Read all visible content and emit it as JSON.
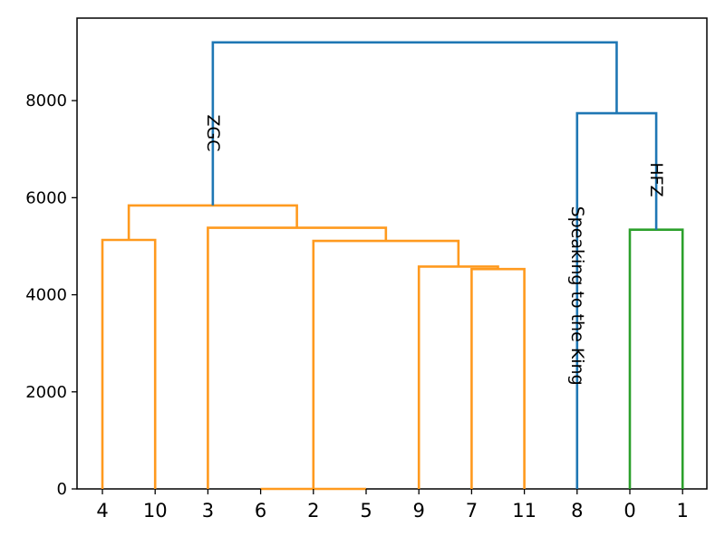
{
  "chart_data": {
    "type": "dendrogram",
    "title": "",
    "xlabel": "",
    "ylabel": "",
    "ylim": [
      0,
      9700
    ],
    "yticks": [
      0,
      2000,
      4000,
      6000,
      8000
    ],
    "ytick_labels": [
      "0",
      "2000",
      "4000",
      "6000",
      "8000"
    ],
    "leaves": [
      "4",
      "10",
      "3",
      "6",
      "2",
      "5",
      "9",
      "7",
      "11",
      "8",
      "0",
      "1"
    ],
    "colors": {
      "orange": "#ff9a1e",
      "green": "#2ca02c",
      "blue": "#1f77b4"
    },
    "links": [
      {
        "name": "link-4-10",
        "color": "orange",
        "height": 5130,
        "left_pos": 0,
        "left_h": 0,
        "right_pos": 1,
        "right_h": 0
      },
      {
        "name": "link-6-5",
        "color": "orange",
        "height": 0,
        "left_pos": 3,
        "left_h": 0,
        "right_pos": 5,
        "right_h": 0
      },
      {
        "name": "link-7-11",
        "color": "orange",
        "height": 4530,
        "left_pos": 7,
        "left_h": 0,
        "right_pos": 8,
        "right_h": 0
      },
      {
        "name": "link-9-7-11",
        "color": "orange",
        "height": 4580,
        "left_pos": 6,
        "left_h": 0,
        "right_pos": 7.5,
        "right_h": 4530
      },
      {
        "name": "link-2-cluster",
        "color": "orange",
        "height": 5110,
        "left_pos": 4,
        "left_h": 0,
        "right_pos": 6.75,
        "right_h": 4580
      },
      {
        "name": "link-3-cluster",
        "color": "orange",
        "height": 5380,
        "left_pos": 2,
        "left_h": 0,
        "right_pos": 5.375,
        "right_h": 5110
      },
      {
        "name": "link-orange-top",
        "color": "orange",
        "height": 5840,
        "left_pos": 0.5,
        "left_h": 5130,
        "right_pos": 3.6875,
        "right_h": 5380
      },
      {
        "name": "link-0-1",
        "color": "green",
        "height": 5340,
        "left_pos": 10,
        "left_h": 0,
        "right_pos": 11,
        "right_h": 0
      },
      {
        "name": "link-8-01",
        "color": "blue",
        "height": 7740,
        "left_pos": 9,
        "left_h": 0,
        "right_pos": 10.5,
        "right_h": 5340
      },
      {
        "name": "link-root",
        "color": "blue",
        "height": 9200,
        "left_pos": 2.09375,
        "left_h": 5840,
        "right_pos": 9.75,
        "right_h": 7740
      }
    ],
    "annotations": [
      {
        "name": "annotation-zgc",
        "text": "ZGC",
        "pos": 2.09375,
        "y": 7330,
        "rotate": 90
      },
      {
        "name": "annotation-hfz",
        "text": "HFZ",
        "pos": 10.5,
        "y": 6370,
        "rotate": 90
      },
      {
        "name": "annotation-speaking-to-the-king",
        "text": "Speaking to the King",
        "pos": 9,
        "y": 3980,
        "rotate": 90
      }
    ]
  }
}
